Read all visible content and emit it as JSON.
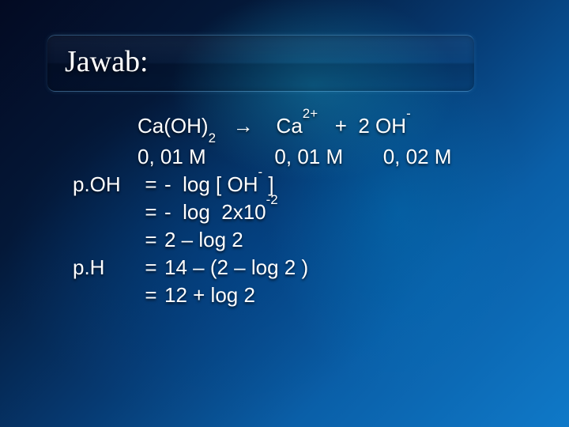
{
  "colors": {
    "text": "#ffffff",
    "bg_gradient_stops": [
      "#030a22",
      "#041838",
      "#063a72",
      "#0a5fa8",
      "#0f79c8"
    ],
    "title_border": "rgba(120,200,255,0.35)"
  },
  "typography": {
    "title_family": "Times New Roman",
    "title_size_pt": 28,
    "body_family": "Arial",
    "body_size_pt": 20
  },
  "title": "Jawab:",
  "equation": {
    "reactant": "Ca(OH)",
    "reactant_sub": "2",
    "arrow": "→",
    "product1_base": "Ca",
    "product1_sup": "2+",
    "plus": "+",
    "product2_coef": "2 OH",
    "product2_sup": "-",
    "conc_reactant": "0, 01 M",
    "conc_product1": "0, 01 M",
    "conc_product2": "0, 02 M"
  },
  "lines": [
    {
      "label": "p.OH",
      "eq": "=",
      "rhs_pre": "-  log [ OH",
      "rhs_sup": "-",
      "rhs_post": " ]"
    },
    {
      "label": "",
      "eq": "=",
      "rhs_pre": "-  log  2x10",
      "rhs_sup": "-2",
      "rhs_post": ""
    },
    {
      "label": "",
      "eq": "=",
      "rhs_pre": "2 – log 2",
      "rhs_sup": "",
      "rhs_post": ""
    },
    {
      "label": "p.H",
      "eq": "=",
      "rhs_pre": "14 – (2 – log 2 )",
      "rhs_sup": "",
      "rhs_post": ""
    },
    {
      "label": "",
      "eq": "=",
      "rhs_pre": "12 + log 2",
      "rhs_sup": "",
      "rhs_post": ""
    }
  ]
}
